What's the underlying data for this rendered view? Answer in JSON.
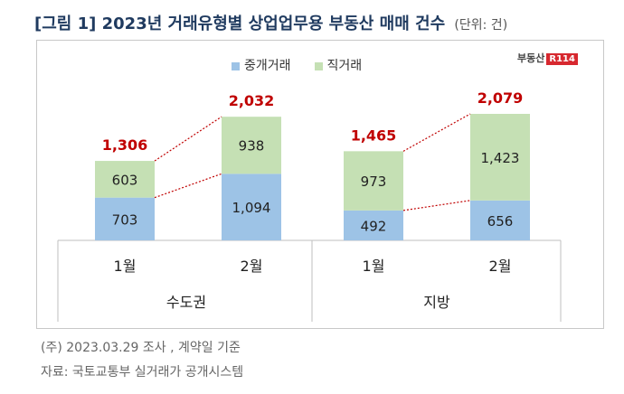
{
  "title": "[그림 1] 2023년 거래유형별 상업업무용 부동산 매매 건수",
  "unit": "(단위: 건)",
  "logo_text": "부동산",
  "logo_badge": "R114",
  "colors": {
    "brokered": "#9dc3e6",
    "direct": "#c5e0b4",
    "total_label": "#c00000",
    "connector": "#c00000"
  },
  "chart_data": {
    "type": "bar",
    "stacked": true,
    "groups": [
      {
        "label": "수도권",
        "categories": [
          "1월",
          "2월"
        ]
      },
      {
        "label": "지방",
        "categories": [
          "1월",
          "2월"
        ]
      }
    ],
    "categories": [
      "1월",
      "2월",
      "1월",
      "2월"
    ],
    "series": [
      {
        "name": "중개거래",
        "values": [
          703,
          1094,
          492,
          656
        ],
        "labels": [
          "703",
          "1,094",
          "492",
          "656"
        ]
      },
      {
        "name": "직거래",
        "values": [
          603,
          938,
          973,
          1423
        ],
        "labels": [
          "603",
          "938",
          "973",
          "1,423"
        ]
      }
    ],
    "totals": [
      1306,
      2032,
      1465,
      2079
    ],
    "total_labels": [
      "1,306",
      "2,032",
      "1,465",
      "2,079"
    ],
    "ylim": [
      0,
      2079
    ],
    "legend": "top-center",
    "grid": false
  },
  "notes": [
    "(주) 2023.03.29 조사 , 계약일 기준",
    "자료: 국토교통부 실거래가 공개시스템"
  ]
}
